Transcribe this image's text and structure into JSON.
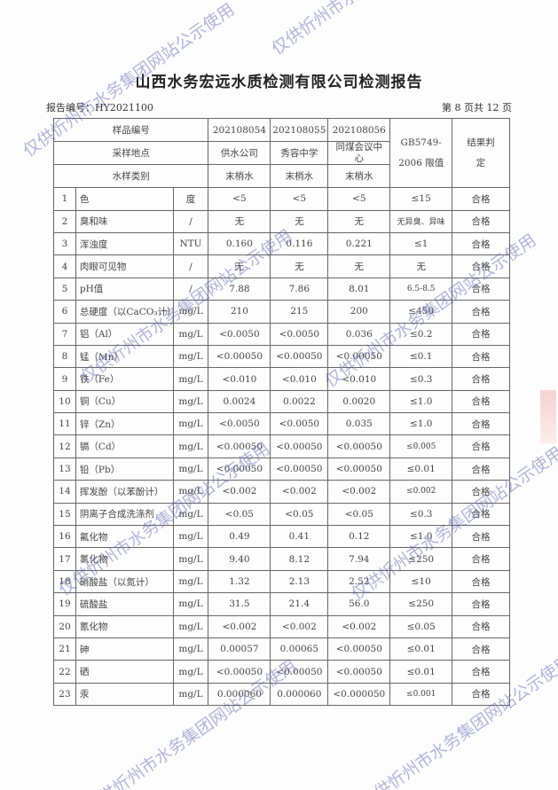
{
  "title": "山西水务宏远水质检测有限公司检测报告",
  "report_no": "报告编号：HY2021100",
  "page_info": "第 8 页共 12 页",
  "watermark": "仅供忻州市水务集团网站公示使用",
  "header": {
    "sample_no_label": "样品编号",
    "site_label": "采样地点",
    "type_label": "水样类别",
    "samples": [
      {
        "no": "202108054",
        "site": "供水公司",
        "type": "末梢水"
      },
      {
        "no": "202108055",
        "site": "秀容中学",
        "type": "末梢水"
      },
      {
        "no": "202108056",
        "site": "同煤会议中心",
        "type": "末梢水"
      }
    ],
    "limit_label": "GB5749-2006 限值",
    "result_label": "结果判定"
  },
  "rows": [
    [
      "1",
      "色",
      "度",
      "<5",
      "<5",
      "<5",
      "≤15",
      "合格"
    ],
    [
      "2",
      "臭和味",
      "/",
      "无",
      "无",
      "无",
      "无异臭、异味",
      "合格"
    ],
    [
      "3",
      "浑浊度",
      "NTU",
      "0.160",
      "0.116",
      "0.221",
      "≤1",
      "合格"
    ],
    [
      "4",
      "肉眼可见物",
      "/",
      "无",
      "无",
      "无",
      "无",
      "合格"
    ],
    [
      "5",
      "pH值",
      "/",
      "7.88",
      "7.86",
      "8.01",
      "6.5-8.5",
      "合格"
    ],
    [
      "6",
      "总硬度（以CaCO₃计）",
      "mg/L",
      "210",
      "215",
      "200",
      "≤450",
      "合格"
    ],
    [
      "7",
      "铝（Al）",
      "mg/L",
      "<0.0050",
      "<0.0050",
      "0.036",
      "≤0.2",
      "合格"
    ],
    [
      "8",
      "锰（Mn）",
      "mg/L",
      "<0.00050",
      "<0.00050",
      "<0.00050",
      "≤0.1",
      "合格"
    ],
    [
      "9",
      "铁（Fe）",
      "mg/L",
      "<0.010",
      "<0.010",
      "<0.010",
      "≤0.3",
      "合格"
    ],
    [
      "10",
      "铜（Cu）",
      "mg/L",
      "0.0024",
      "0.0022",
      "0.0020",
      "≤1.0",
      "合格"
    ],
    [
      "11",
      "锌（Zn）",
      "mg/L",
      "<0.0050",
      "<0.0050",
      "0.035",
      "≤1.0",
      "合格"
    ],
    [
      "12",
      "镉（Cd）",
      "mg/L",
      "<0.00050",
      "<0.00050",
      "<0.00050",
      "≤0.005",
      "合格"
    ],
    [
      "13",
      "铅（Pb）",
      "mg/L",
      "<0.00050",
      "<0.00050",
      "<0.00050",
      "≤0.01",
      "合格"
    ],
    [
      "14",
      "挥发酚（以苯酚计）",
      "mg/L",
      "<0.002",
      "<0.002",
      "<0.002",
      "≤0.002",
      "合格"
    ],
    [
      "15",
      "阴离子合成洗涤剂",
      "mg/L",
      "<0.05",
      "<0.05",
      "<0.05",
      "≤0.3",
      "合格"
    ],
    [
      "16",
      "氟化物",
      "mg/L",
      "0.49",
      "0.41",
      "0.12",
      "≤1.0",
      "合格"
    ],
    [
      "17",
      "氯化物",
      "mg/L",
      "9.40",
      "8.12",
      "7.94",
      "≤250",
      "合格"
    ],
    [
      "18",
      "硝酸盐（以氮计）",
      "mg/L",
      "1.32",
      "2.13",
      "2.52",
      "≤10",
      "合格"
    ],
    [
      "19",
      "硫酸盐",
      "mg/L",
      "31.5",
      "21.4",
      "56.0",
      "≤250",
      "合格"
    ],
    [
      "20",
      "氰化物",
      "mg/L",
      "<0.002",
      "<0.002",
      "<0.002",
      "≤0.05",
      "合格"
    ],
    [
      "21",
      "砷",
      "mg/L",
      "0.00057",
      "0.00065",
      "<0.00050",
      "≤0.01",
      "合格"
    ],
    [
      "22",
      "硒",
      "mg/L",
      "<0.00050",
      "<0.00050",
      "<0.00050",
      "≤0.01",
      "合格"
    ],
    [
      "23",
      "汞",
      "mg/L",
      "0.000060",
      "0.000060",
      "<0.000050",
      "≤0.001",
      "合格"
    ]
  ]
}
